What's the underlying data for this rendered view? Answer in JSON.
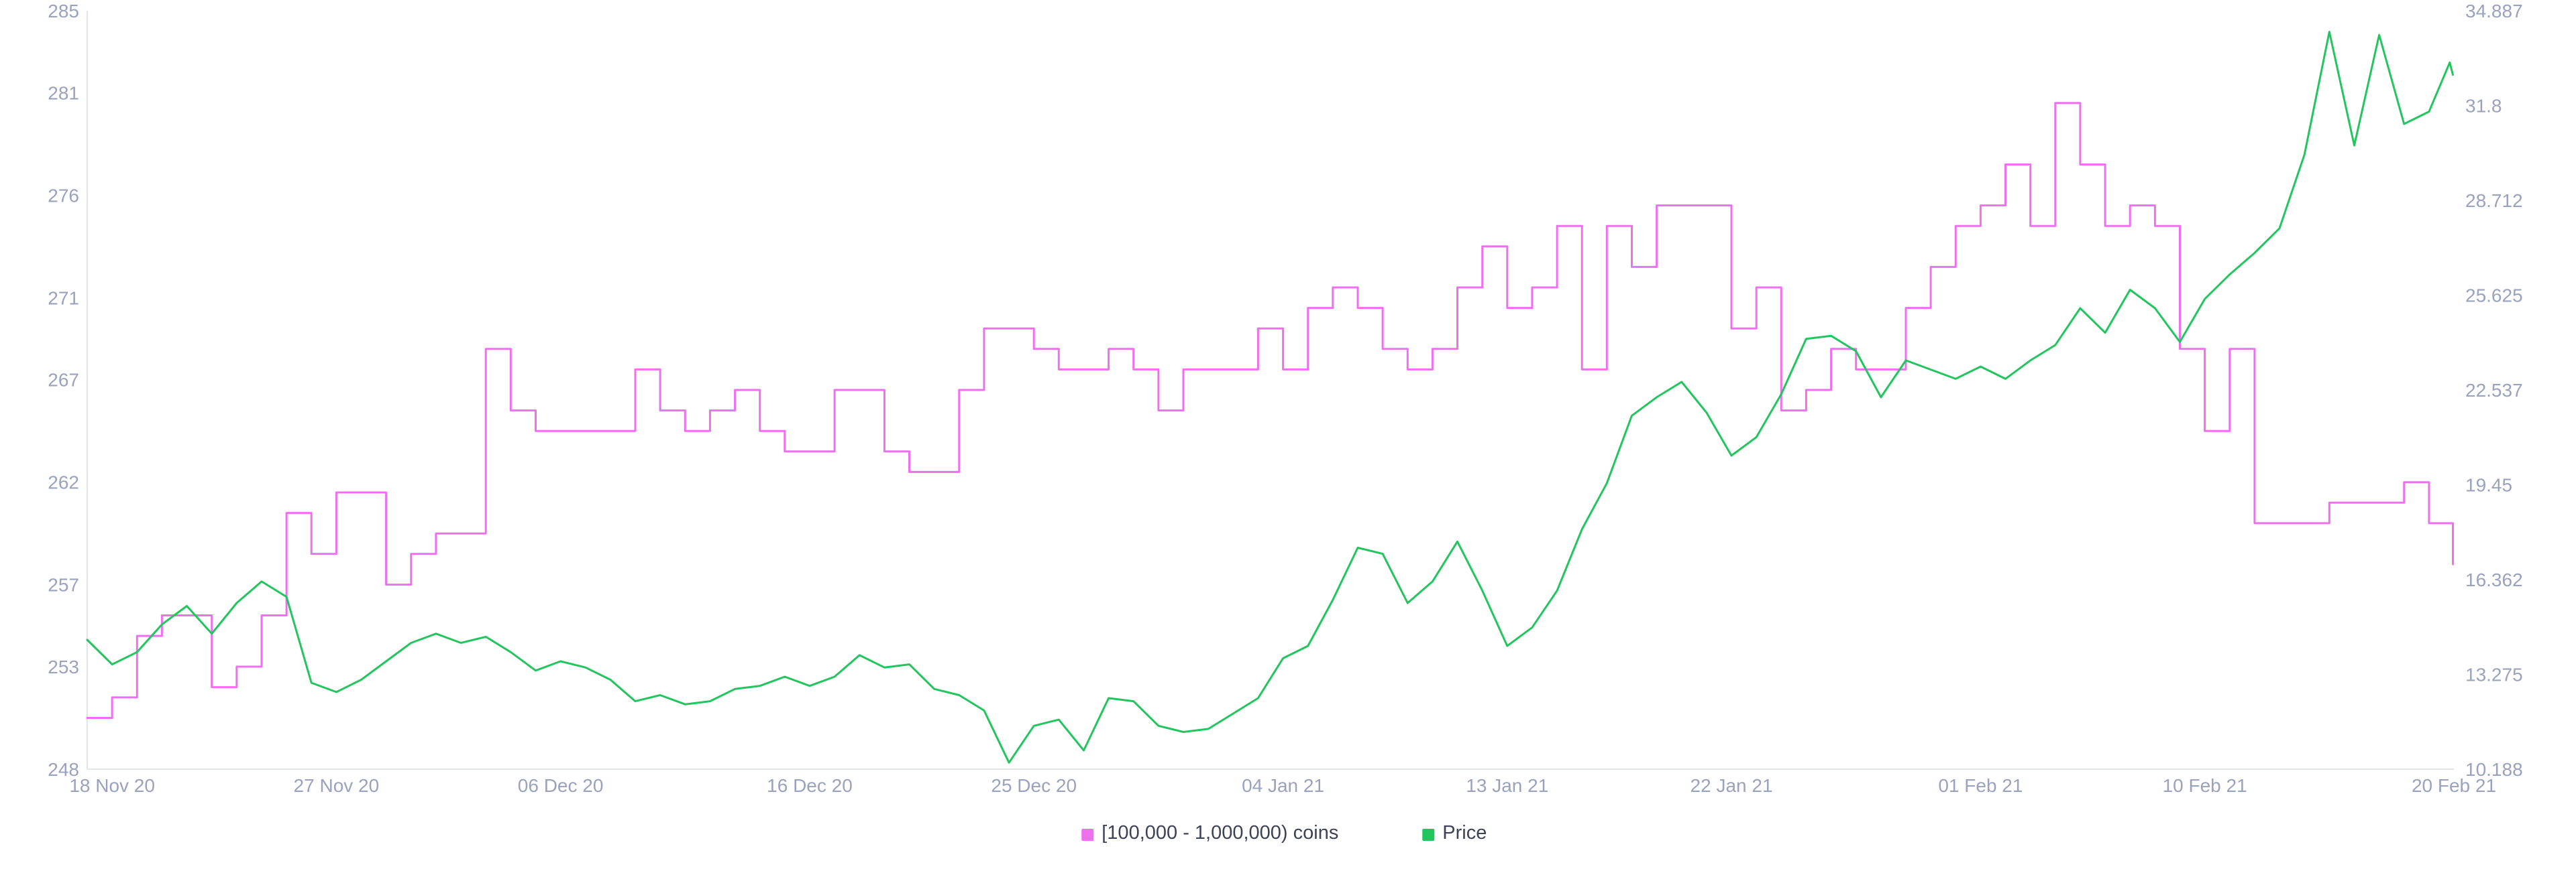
{
  "chart_data": {
    "type": "line",
    "title": "",
    "xlabel": "",
    "ylabel_left": "",
    "ylabel_right": "",
    "grid": false,
    "legend_position": "bottom-center",
    "x_range": [
      "2020-11-17",
      "2021-02-20"
    ],
    "y_left": {
      "range": [
        248,
        285
      ],
      "ticks": [
        "248",
        "253",
        "257",
        "262",
        "267",
        "271",
        "276",
        "281",
        "285"
      ]
    },
    "y_right": {
      "range": [
        10.188,
        34.887
      ],
      "ticks": [
        "10.188",
        "13.275",
        "16.362",
        "19.45",
        "22.537",
        "25.625",
        "28.712",
        "31.8",
        "34.887"
      ]
    },
    "x_ticks": [
      {
        "date": "2020-11-18",
        "label": "18 Nov 20"
      },
      {
        "date": "2020-11-27",
        "label": "27 Nov 20"
      },
      {
        "date": "2020-12-06",
        "label": "06 Dec 20"
      },
      {
        "date": "2020-12-16",
        "label": "16 Dec 20"
      },
      {
        "date": "2020-12-25",
        "label": "25 Dec 20"
      },
      {
        "date": "2021-01-04",
        "label": "04 Jan 21"
      },
      {
        "date": "2021-01-13",
        "label": "13 Jan 21"
      },
      {
        "date": "2021-01-22",
        "label": "22 Jan 21"
      },
      {
        "date": "2021-02-01",
        "label": "01 Feb 21"
      },
      {
        "date": "2021-02-10",
        "label": "10 Feb 21"
      },
      {
        "date": "2021-02-20",
        "label": "20 Feb 21"
      }
    ],
    "series": [
      {
        "name": "[100,000  - 1,000,000) coins",
        "axis": "left",
        "shape": "step",
        "color": "#ef6ff0",
        "points": [
          [
            "2020-11-17",
            250.5
          ],
          [
            "2020-11-18",
            251.5
          ],
          [
            "2020-11-19",
            254.5
          ],
          [
            "2020-11-20",
            255.5
          ],
          [
            "2020-11-22",
            252
          ],
          [
            "2020-11-23",
            253
          ],
          [
            "2020-11-24",
            255.5
          ],
          [
            "2020-11-25",
            260.5
          ],
          [
            "2020-11-26",
            258.5
          ],
          [
            "2020-11-27",
            261.5
          ],
          [
            "2020-11-29",
            257
          ],
          [
            "2020-11-30",
            258.5
          ],
          [
            "2020-12-01",
            259.5
          ],
          [
            "2020-12-03",
            268.5
          ],
          [
            "2020-12-04",
            265.5
          ],
          [
            "2020-12-05",
            264.5
          ],
          [
            "2020-12-09",
            267.5
          ],
          [
            "2020-12-10",
            265.5
          ],
          [
            "2020-12-11",
            264.5
          ],
          [
            "2020-12-12",
            265.5
          ],
          [
            "2020-12-13",
            266.5
          ],
          [
            "2020-12-14",
            264.5
          ],
          [
            "2020-12-15",
            263.5
          ],
          [
            "2020-12-17",
            266.5
          ],
          [
            "2020-12-19",
            263.5
          ],
          [
            "2020-12-20",
            262.5
          ],
          [
            "2020-12-22",
            266.5
          ],
          [
            "2020-12-23",
            269.5
          ],
          [
            "2020-12-25",
            268.5
          ],
          [
            "2020-12-26",
            267.5
          ],
          [
            "2020-12-28",
            268.5
          ],
          [
            "2020-12-29",
            267.5
          ],
          [
            "2020-12-30",
            265.5
          ],
          [
            "2020-12-31",
            267.5
          ],
          [
            "2021-01-03",
            269.5
          ],
          [
            "2021-01-04",
            267.5
          ],
          [
            "2021-01-05",
            270.5
          ],
          [
            "2021-01-06",
            271.5
          ],
          [
            "2021-01-07",
            270.5
          ],
          [
            "2021-01-08",
            268.5
          ],
          [
            "2021-01-09",
            267.5
          ],
          [
            "2021-01-10",
            268.5
          ],
          [
            "2021-01-11",
            271.5
          ],
          [
            "2021-01-12",
            273.5
          ],
          [
            "2021-01-13",
            270.5
          ],
          [
            "2021-01-14",
            271.5
          ],
          [
            "2021-01-15",
            274.5
          ],
          [
            "2021-01-16",
            267.5
          ],
          [
            "2021-01-17",
            274.5
          ],
          [
            "2021-01-18",
            272.5
          ],
          [
            "2021-01-19",
            275.5
          ],
          [
            "2021-01-22",
            269.5
          ],
          [
            "2021-01-23",
            271.5
          ],
          [
            "2021-01-24",
            265.5
          ],
          [
            "2021-01-25",
            266.5
          ],
          [
            "2021-01-26",
            268.5
          ],
          [
            "2021-01-27",
            267.5
          ],
          [
            "2021-01-29",
            270.5
          ],
          [
            "2021-01-30",
            272.5
          ],
          [
            "2021-01-31",
            274.5
          ],
          [
            "2021-02-01",
            275.5
          ],
          [
            "2021-02-02",
            277.5
          ],
          [
            "2021-02-03",
            274.5
          ],
          [
            "2021-02-04",
            280.5
          ],
          [
            "2021-02-05",
            277.5
          ],
          [
            "2021-02-06",
            274.5
          ],
          [
            "2021-02-07",
            275.5
          ],
          [
            "2021-02-08",
            274.5
          ],
          [
            "2021-02-09",
            268.5
          ],
          [
            "2021-02-10",
            264.5
          ],
          [
            "2021-02-11",
            268.5
          ],
          [
            "2021-02-12",
            260
          ],
          [
            "2021-02-15",
            261
          ],
          [
            "2021-02-18",
            262
          ],
          [
            "2021-02-19",
            260
          ],
          [
            "2021-02-19T23:00",
            258
          ]
        ]
      },
      {
        "name": "Price",
        "axis": "right",
        "shape": "line",
        "color": "#22c55e",
        "points": [
          [
            "2020-11-17",
            14.4
          ],
          [
            "2020-11-18",
            13.6
          ],
          [
            "2020-11-19",
            14.0
          ],
          [
            "2020-11-20",
            14.9
          ],
          [
            "2020-11-21",
            15.5
          ],
          [
            "2020-11-22",
            14.6
          ],
          [
            "2020-11-23",
            15.6
          ],
          [
            "2020-11-24",
            16.3
          ],
          [
            "2020-11-25",
            15.8
          ],
          [
            "2020-11-26",
            13.0
          ],
          [
            "2020-11-27",
            12.7
          ],
          [
            "2020-11-28",
            13.1
          ],
          [
            "2020-11-29",
            13.7
          ],
          [
            "2020-11-30",
            14.3
          ],
          [
            "2020-12-01",
            14.6
          ],
          [
            "2020-12-02",
            14.3
          ],
          [
            "2020-12-03",
            14.5
          ],
          [
            "2020-12-04",
            14.0
          ],
          [
            "2020-12-05",
            13.4
          ],
          [
            "2020-12-06",
            13.7
          ],
          [
            "2020-12-07",
            13.5
          ],
          [
            "2020-12-08",
            13.1
          ],
          [
            "2020-12-09",
            12.4
          ],
          [
            "2020-12-10",
            12.6
          ],
          [
            "2020-12-11",
            12.3
          ],
          [
            "2020-12-12",
            12.4
          ],
          [
            "2020-12-13",
            12.8
          ],
          [
            "2020-12-14",
            12.9
          ],
          [
            "2020-12-15",
            13.2
          ],
          [
            "2020-12-16",
            12.9
          ],
          [
            "2020-12-17",
            13.2
          ],
          [
            "2020-12-18",
            13.9
          ],
          [
            "2020-12-19",
            13.5
          ],
          [
            "2020-12-20",
            13.6
          ],
          [
            "2020-12-21",
            12.8
          ],
          [
            "2020-12-22",
            12.6
          ],
          [
            "2020-12-23",
            12.1
          ],
          [
            "2020-12-24",
            10.4
          ],
          [
            "2020-12-25",
            11.6
          ],
          [
            "2020-12-26",
            11.8
          ],
          [
            "2020-12-27",
            10.8
          ],
          [
            "2020-12-28",
            12.5
          ],
          [
            "2020-12-29",
            12.4
          ],
          [
            "2020-12-30",
            11.6
          ],
          [
            "2020-12-31",
            11.4
          ],
          [
            "2021-01-01",
            11.5
          ],
          [
            "2021-01-02",
            12.0
          ],
          [
            "2021-01-03",
            12.5
          ],
          [
            "2021-01-04",
            13.8
          ],
          [
            "2021-01-05",
            14.2
          ],
          [
            "2021-01-06",
            15.7
          ],
          [
            "2021-01-07",
            17.4
          ],
          [
            "2021-01-08",
            17.2
          ],
          [
            "2021-01-09",
            15.6
          ],
          [
            "2021-01-10",
            16.3
          ],
          [
            "2021-01-11",
            17.6
          ],
          [
            "2021-01-12",
            16.0
          ],
          [
            "2021-01-13",
            14.2
          ],
          [
            "2021-01-14",
            14.8
          ],
          [
            "2021-01-15",
            16.0
          ],
          [
            "2021-01-16",
            18.0
          ],
          [
            "2021-01-17",
            19.5
          ],
          [
            "2021-01-18",
            21.7
          ],
          [
            "2021-01-19",
            22.3
          ],
          [
            "2021-01-20",
            22.8
          ],
          [
            "2021-01-21",
            21.8
          ],
          [
            "2021-01-22",
            20.4
          ],
          [
            "2021-01-23",
            21.0
          ],
          [
            "2021-01-24",
            22.4
          ],
          [
            "2021-01-25",
            24.2
          ],
          [
            "2021-01-26",
            24.3
          ],
          [
            "2021-01-27",
            23.8
          ],
          [
            "2021-01-28",
            22.3
          ],
          [
            "2021-01-29",
            23.5
          ],
          [
            "2021-01-30",
            23.2
          ],
          [
            "2021-01-31",
            22.9
          ],
          [
            "2021-02-01",
            23.3
          ],
          [
            "2021-02-02",
            22.9
          ],
          [
            "2021-02-03",
            23.5
          ],
          [
            "2021-02-04",
            24.0
          ],
          [
            "2021-02-05",
            25.2
          ],
          [
            "2021-02-06",
            24.4
          ],
          [
            "2021-02-07",
            25.8
          ],
          [
            "2021-02-08",
            25.2
          ],
          [
            "2021-02-09",
            24.1
          ],
          [
            "2021-02-10",
            25.5
          ],
          [
            "2021-02-11",
            26.3
          ],
          [
            "2021-02-12",
            27.0
          ],
          [
            "2021-02-13",
            27.8
          ],
          [
            "2021-02-14",
            30.2
          ],
          [
            "2021-02-15",
            34.2
          ],
          [
            "2021-02-16",
            30.5
          ],
          [
            "2021-02-17",
            34.1
          ],
          [
            "2021-02-18",
            31.2
          ],
          [
            "2021-02-19",
            31.6
          ],
          [
            "2021-02-19T20:00",
            33.2
          ],
          [
            "2021-02-19T23:00",
            32.8
          ]
        ]
      }
    ]
  }
}
